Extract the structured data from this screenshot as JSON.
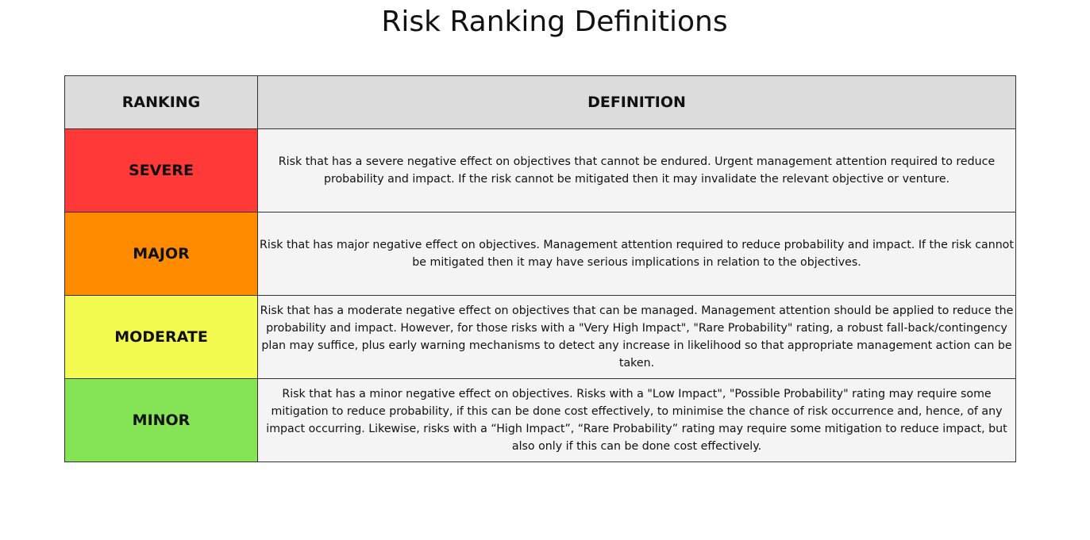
{
  "title": "Risk Ranking Definitions",
  "table": {
    "headers": {
      "ranking": "RANKING",
      "definition": "DEFINITION"
    },
    "rows": [
      {
        "ranking": "SEVERE",
        "color": "#ff3838",
        "definition": "Risk that has a severe negative effect on objectives that cannot be endured. Urgent management attention required to reduce probability and impact. If the risk cannot be mitigated then it may invalidate the relevant objective or venture."
      },
      {
        "ranking": "MAJOR",
        "color": "#ff8c00",
        "definition": "Risk that has major negative effect on objectives. Management attention required to reduce probability and impact. If the risk cannot be mitigated then it may have serious implications in relation to the objectives."
      },
      {
        "ranking": "MODERATE",
        "color": "#f4fb50",
        "definition": "Risk that has a moderate negative effect on objectives that can be managed. Management attention should be applied to reduce the probability and impact. However, for those risks with a \"Very High Impact\", \"Rare Probability\" rating, a robust fall-back/contingency plan may suffice, plus early warning mechanisms to detect any increase in likelihood so that appropriate management action can be taken."
      },
      {
        "ranking": "MINOR",
        "color": "#85e455",
        "definition": "Risk that has a minor negative effect on objectives. Risks with a \"Low Impact\", \"Possible Probability\" rating may require some mitigation to reduce probability, if this can be done cost effectively, to minimise the chance of risk occurrence and, hence, of any impact occurring. Likewise, risks with a “High Impact”, “Rare Probability” rating may require some mitigation to reduce impact, but also only if this can be done cost effectively."
      }
    ]
  }
}
